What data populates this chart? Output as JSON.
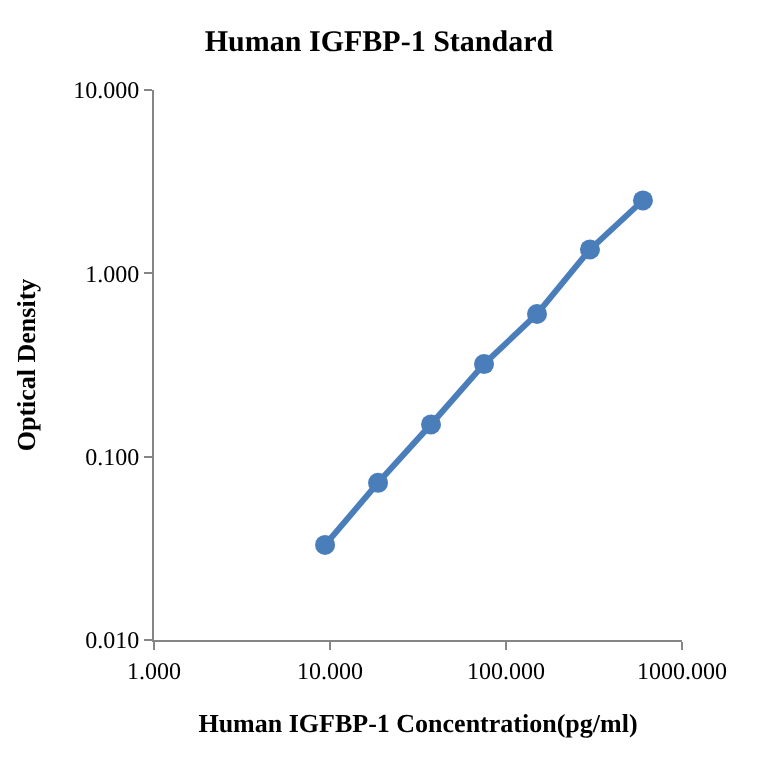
{
  "chart_data": {
    "type": "line",
    "title": "Human IGFBP-1 Standard",
    "xlabel": "Human IGFBP-1 Concentration(pg/ml)",
    "ylabel": "Optical Density",
    "log": "xy",
    "x": [
      9.375,
      18.75,
      37.5,
      75,
      150,
      300,
      600
    ],
    "series": [
      {
        "color": "#4a7ebb",
        "values": [
          0.033,
          0.072,
          0.15,
          0.32,
          0.6,
          1.35,
          2.5
        ]
      }
    ],
    "xlim": [
      1,
      1000
    ],
    "xticks": [
      {
        "value": 1,
        "label": "1.000"
      },
      {
        "value": 10,
        "label": "10.000"
      },
      {
        "value": 100,
        "label": "100.000"
      },
      {
        "value": 1000,
        "label": "1000.000"
      }
    ],
    "ylim": [
      0.01,
      10
    ],
    "yticks": [
      {
        "value": 0.01,
        "label": "0.010"
      },
      {
        "value": 0.1,
        "label": "0.100"
      },
      {
        "value": 1,
        "label": "1.000"
      },
      {
        "value": 10,
        "label": "10.000"
      }
    ],
    "legend": false,
    "marker": "circle",
    "line_style": "solid"
  }
}
